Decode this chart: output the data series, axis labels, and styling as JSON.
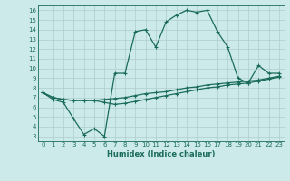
{
  "xlabel": "Humidex (Indice chaleur)",
  "bg_color": "#cceaea",
  "line_color": "#1a6b5a",
  "grid_color": "#b0cccc",
  "xlim": [
    -0.5,
    23.5
  ],
  "ylim": [
    2.5,
    16.5
  ],
  "yticks": [
    3,
    4,
    5,
    6,
    7,
    8,
    9,
    10,
    11,
    12,
    13,
    14,
    15,
    16
  ],
  "xticks": [
    0,
    1,
    2,
    3,
    4,
    5,
    6,
    7,
    8,
    9,
    10,
    11,
    12,
    13,
    14,
    15,
    16,
    17,
    18,
    19,
    20,
    21,
    22,
    23
  ],
  "line1_x": [
    0,
    1,
    2,
    3,
    4,
    5,
    6,
    7,
    8,
    9,
    10,
    11,
    12,
    13,
    14,
    15,
    16,
    17,
    18,
    19,
    20,
    21,
    22,
    23
  ],
  "line1_y": [
    7.5,
    6.8,
    6.5,
    4.8,
    3.2,
    3.8,
    3.0,
    9.5,
    9.5,
    13.8,
    14.0,
    12.2,
    14.8,
    15.5,
    16.0,
    15.8,
    16.0,
    13.8,
    12.2,
    9.0,
    8.5,
    10.3,
    9.5,
    9.5
  ],
  "line2_x": [
    0,
    1,
    2,
    3,
    4,
    5,
    6,
    7,
    8,
    9,
    10,
    11,
    12,
    13,
    14,
    15,
    16,
    17,
    18,
    19,
    20,
    21,
    22,
    23
  ],
  "line2_y": [
    7.5,
    7.0,
    6.8,
    6.7,
    6.7,
    6.7,
    6.8,
    6.9,
    7.0,
    7.2,
    7.4,
    7.5,
    7.6,
    7.8,
    8.0,
    8.1,
    8.3,
    8.4,
    8.5,
    8.6,
    8.7,
    8.8,
    9.0,
    9.2
  ],
  "line3_x": [
    0,
    1,
    2,
    3,
    4,
    5,
    6,
    7,
    8,
    9,
    10,
    11,
    12,
    13,
    14,
    15,
    16,
    17,
    18,
    19,
    20,
    21,
    22,
    23
  ],
  "line3_y": [
    7.5,
    7.0,
    6.8,
    6.7,
    6.7,
    6.7,
    6.5,
    6.3,
    6.4,
    6.6,
    6.8,
    7.0,
    7.2,
    7.4,
    7.6,
    7.8,
    8.0,
    8.1,
    8.3,
    8.4,
    8.5,
    8.7,
    8.9,
    9.1
  ]
}
